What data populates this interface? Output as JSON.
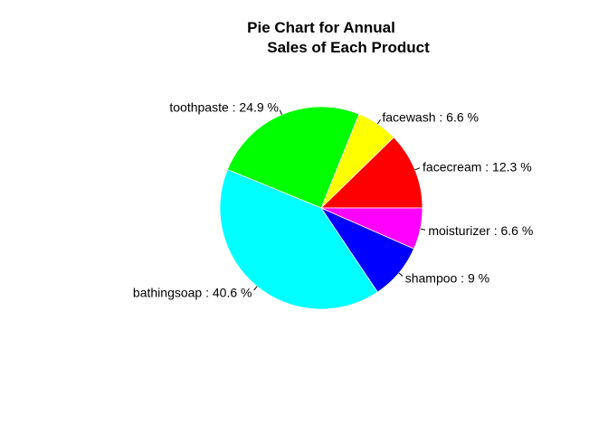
{
  "chart_data": {
    "type": "pie",
    "title_lines": [
      "Pie Chart for Annual",
      "Sales of Each Product"
    ],
    "slices": [
      {
        "name": "facecream",
        "label": "facecream : 12.3 %",
        "percent": 12.3,
        "color": "#FF0000"
      },
      {
        "name": "facewash",
        "label": "facewash : 6.6 %",
        "percent": 6.6,
        "color": "#FFFF00"
      },
      {
        "name": "toothpaste",
        "label": "toothpaste : 24.9 %",
        "percent": 24.9,
        "color": "#00FF00"
      },
      {
        "name": "bathingsoap",
        "label": "bathingsoap : 40.6 %",
        "percent": 40.6,
        "color": "#00FFFF"
      },
      {
        "name": "shampoo",
        "label": "shampoo : 9 %",
        "percent": 9,
        "color": "#0000FF"
      },
      {
        "name": "moisturizer",
        "label": "moisturizer : 6.6 %",
        "percent": 6.6,
        "color": "#FF00FF"
      }
    ],
    "start_angle": 0,
    "direction": "counterclockwise",
    "legend": "none"
  }
}
